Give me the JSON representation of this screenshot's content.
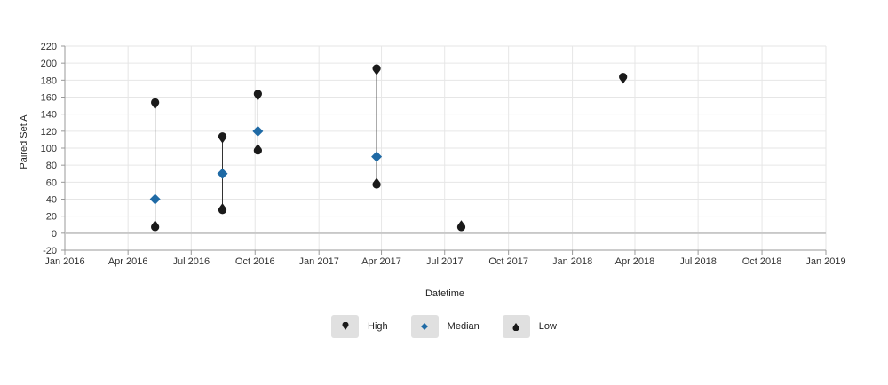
{
  "chart_data": {
    "type": "scatter",
    "xlabel": "Datetime",
    "ylabel": "Paired Set A",
    "ylim": [
      -20,
      220
    ],
    "y_ticks": [
      "-20",
      "0",
      "20",
      "40",
      "60",
      "80",
      "100",
      "120",
      "140",
      "160",
      "180",
      "200",
      "220"
    ],
    "x_range": [
      "2016-01-01",
      "2019-01-01"
    ],
    "x_ticks": [
      {
        "date": "2016-01-01",
        "label": "Jan 2016"
      },
      {
        "date": "2016-04-01",
        "label": "Apr 2016"
      },
      {
        "date": "2016-07-01",
        "label": "Jul 2016"
      },
      {
        "date": "2016-10-01",
        "label": "Oct 2016"
      },
      {
        "date": "2017-01-01",
        "label": "Jan 2017"
      },
      {
        "date": "2017-04-01",
        "label": "Apr 2017"
      },
      {
        "date": "2017-07-01",
        "label": "Jul 2017"
      },
      {
        "date": "2017-10-01",
        "label": "Oct 2017"
      },
      {
        "date": "2018-01-01",
        "label": "Jan 2018"
      },
      {
        "date": "2018-04-01",
        "label": "Apr 2018"
      },
      {
        "date": "2018-07-01",
        "label": "Jul 2018"
      },
      {
        "date": "2018-10-01",
        "label": "Oct 2018"
      },
      {
        "date": "2019-01-01",
        "label": "Jan 2019"
      }
    ],
    "grid": true,
    "legend_position": "bottom",
    "series": [
      {
        "name": "High",
        "color": "#1a1a1a",
        "marker": "teardrop-down"
      },
      {
        "name": "Median",
        "color": "#1f6aa5",
        "marker": "diamond"
      },
      {
        "name": "Low",
        "color": "#1a1a1a",
        "marker": "teardrop-up"
      }
    ],
    "points": [
      {
        "date": "2016-05-10",
        "high": 151,
        "median": 40,
        "low": 10
      },
      {
        "date": "2016-08-15",
        "high": 111,
        "median": 70,
        "low": 30
      },
      {
        "date": "2016-10-05",
        "high": 161,
        "median": 120,
        "low": 100
      },
      {
        "date": "2017-03-25",
        "high": 191,
        "median": 90,
        "low": 60
      },
      {
        "date": "2017-07-25",
        "high": null,
        "median": null,
        "low": 10
      },
      {
        "date": "2018-03-15",
        "high": 181,
        "median": null,
        "low": null
      }
    ]
  }
}
